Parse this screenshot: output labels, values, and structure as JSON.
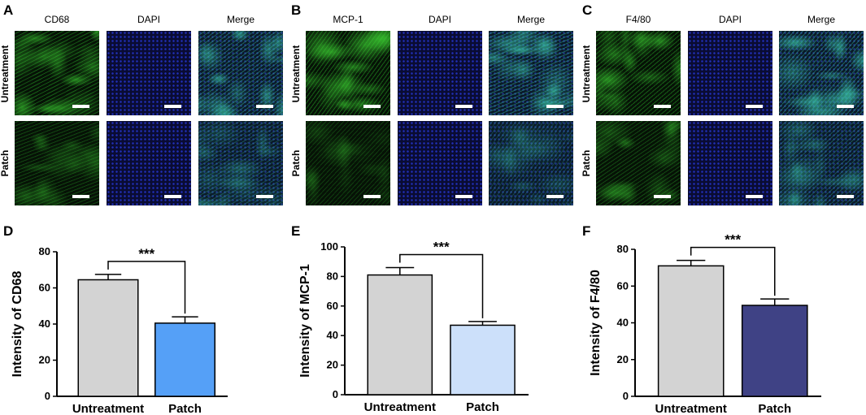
{
  "figure": {
    "panels": [
      {
        "letter": "A",
        "columns": [
          "CD68",
          "DAPI",
          "Merge"
        ],
        "rows": [
          "Untreatment",
          "Patch"
        ],
        "green_level": [
          0.85,
          0.45
        ]
      },
      {
        "letter": "B",
        "columns": [
          "MCP-1",
          "DAPI",
          "Merge"
        ],
        "rows": [
          "Untreatment",
          "Patch"
        ],
        "green_level": [
          0.95,
          0.3
        ]
      },
      {
        "letter": "C",
        "columns": [
          "F4/80",
          "DAPI",
          "Merge"
        ],
        "rows": [
          "Untreatment",
          "Patch"
        ],
        "green_level": [
          0.9,
          0.55
        ]
      }
    ]
  },
  "chart_data": [
    {
      "letter": "D",
      "type": "bar",
      "categories": [
        "Untreatment",
        "Patch"
      ],
      "values": [
        64.5,
        40.5
      ],
      "errors": [
        3.0,
        3.5
      ],
      "colors": [
        "#d3d3d3",
        "#55a0f7"
      ],
      "ylabel": "Intensity of CD68",
      "ylim": [
        0,
        80
      ],
      "yticks": [
        0,
        20,
        40,
        60,
        80
      ],
      "significance": "***",
      "grid": false
    },
    {
      "letter": "E",
      "type": "bar",
      "categories": [
        "Untreatment",
        "Patch"
      ],
      "values": [
        81,
        47
      ],
      "errors": [
        5.0,
        2.5
      ],
      "colors": [
        "#d3d3d3",
        "#cce0fa"
      ],
      "ylabel": "Intensity of MCP-1",
      "ylim": [
        0,
        100
      ],
      "yticks": [
        0,
        20,
        40,
        60,
        80,
        100
      ],
      "significance": "***",
      "grid": false
    },
    {
      "letter": "F",
      "type": "bar",
      "categories": [
        "Untreatment",
        "Patch"
      ],
      "values": [
        71,
        49.5
      ],
      "errors": [
        3.0,
        3.5
      ],
      "colors": [
        "#d3d3d3",
        "#3f4285"
      ],
      "ylabel": "Intensity of F4/80",
      "ylim": [
        0,
        80
      ],
      "yticks": [
        0,
        20,
        40,
        60,
        80
      ],
      "significance": "***",
      "grid": false
    }
  ]
}
